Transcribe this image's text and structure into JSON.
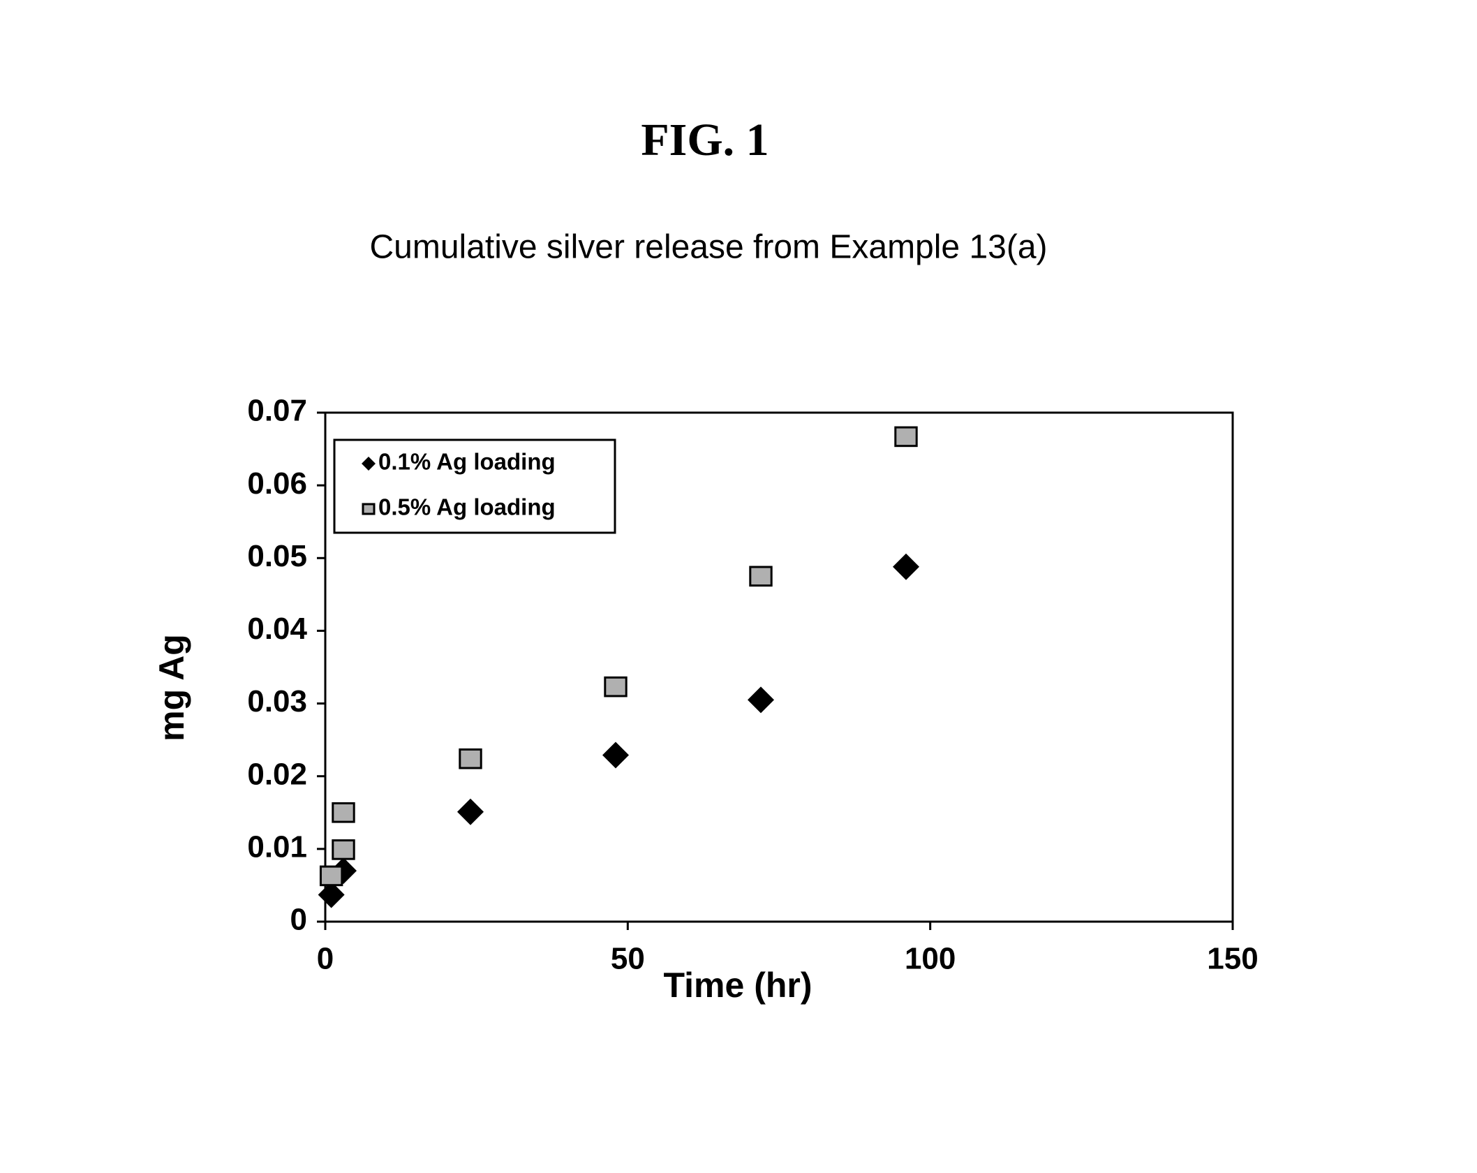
{
  "figure_label": "FIG. 1",
  "chart_data": {
    "type": "scatter",
    "title": "Cumulative silver release from Example 13(a)",
    "x_label": "Time (hr)",
    "y_label": "mg Ag",
    "xlim": [
      0,
      150
    ],
    "xticks": [
      0,
      50,
      100,
      150
    ],
    "ylim": [
      0,
      0.07
    ],
    "yticks": [
      0,
      0.01,
      0.02,
      0.03,
      0.04,
      0.05,
      0.06,
      0.07
    ],
    "grid": false,
    "legend": "upper left",
    "series": [
      {
        "name": "0.1% Ag loading",
        "color": "#000000",
        "marker": "diamond",
        "x": [
          1,
          3,
          24,
          48,
          72,
          96
        ],
        "values": [
          0.0037,
          0.007,
          0.0151,
          0.0229,
          0.0305,
          0.0488
        ]
      },
      {
        "name": "0.5% Ag loading",
        "color": "#b0b0b0",
        "marker": "square",
        "x": [
          1,
          3,
          3,
          24,
          48,
          72,
          96
        ],
        "values": [
          0.0063,
          0.0099,
          0.015,
          0.0224,
          0.0323,
          0.0475,
          0.0667
        ]
      }
    ]
  }
}
